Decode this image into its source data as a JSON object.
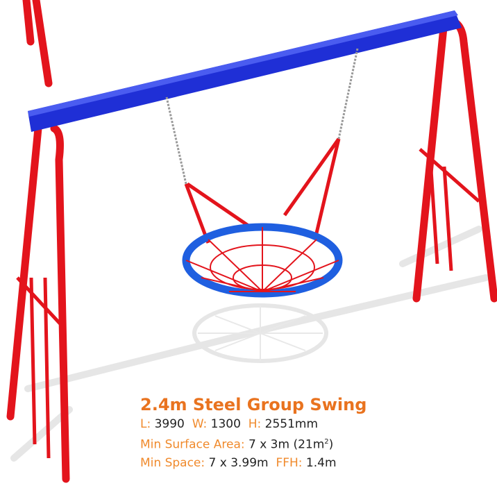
{
  "title": "2.4m Steel Group Swing",
  "specs": [
    [
      {
        "label": "L:",
        "value": "3990"
      },
      {
        "label": "W:",
        "value": "1300"
      },
      {
        "label": "H:",
        "value": "2551mm"
      }
    ],
    [
      {
        "label": "Min Surface Area:",
        "value": "7 x 3m (21m",
        "sup": "2",
        "after": ")"
      }
    ],
    [
      {
        "label": "Min Space:",
        "value": "7 x 3.99m"
      },
      {
        "label": "FFH:",
        "value": "1.4m"
      }
    ]
  ]
}
